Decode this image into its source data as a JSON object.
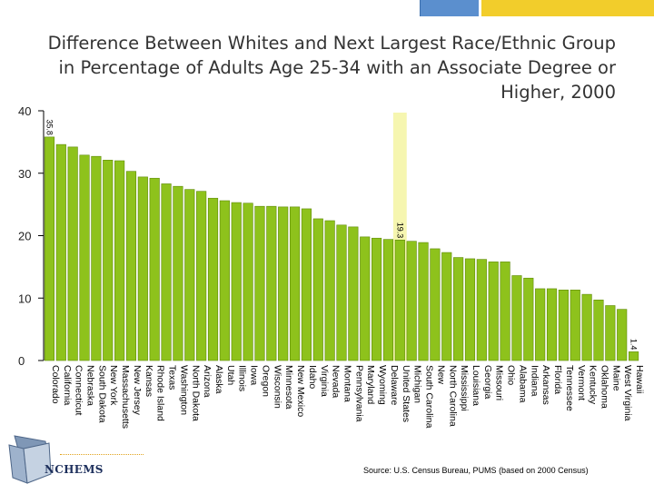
{
  "title": "Difference Between Whites and Next Largest Race/Ethnic Group in Percentage of Adults Age 25-34 with an Associate Degree or Higher, 2000",
  "source": "Source:  U.S. Census Bureau, PUMS (based on 2000 Census)",
  "logo_text": "NCHEMS",
  "colors": {
    "bar": "#8ec21c",
    "bar_stroke": "#5e8a08",
    "highlight": "#f6f6b0",
    "axis": "#000000",
    "accent_blue": "#5b8fce",
    "accent_yellow": "#f2cd2b"
  },
  "chart_data": {
    "type": "bar",
    "ylim": [
      0,
      40
    ],
    "yticks": [
      0,
      10,
      20,
      30,
      40
    ],
    "highlight_category": "United States",
    "categories": [
      "Colorado",
      "California",
      "Connecticut",
      "Nebraska",
      "South Dakota",
      "New York",
      "Massachusetts",
      "New Jersey",
      "Kansas",
      "Rhode Island",
      "Texas",
      "Washington",
      "North Dakota",
      "Arizona",
      "Alaska",
      "Utah",
      "Illinois",
      "Iowa",
      "Oregon",
      "Wisconsin",
      "Minnesota",
      "New Mexico",
      "Idaho",
      "Virginia",
      "Nevada",
      "Montana",
      "Pennsylvania",
      "Maryland",
      "Wyoming",
      "Delaware",
      "United States",
      "Michigan",
      "South Carolina",
      "New",
      "North Carolina",
      "Mississippi",
      "Louisiana",
      "Georgia",
      "Missouri",
      "Ohio",
      "Alabama",
      "Indiana",
      "Arkansas",
      "Florida",
      "Tennessee",
      "Vermont",
      "Kentucky",
      "Oklahoma",
      "Maine",
      "West Virginia",
      "Hawaii"
    ],
    "values": [
      35.8,
      34.6,
      34.2,
      32.9,
      32.7,
      32.1,
      32.0,
      30.3,
      29.4,
      29.2,
      28.3,
      27.9,
      27.4,
      27.1,
      26.0,
      25.6,
      25.3,
      25.2,
      24.7,
      24.7,
      24.6,
      24.6,
      24.3,
      22.7,
      22.4,
      21.7,
      21.4,
      19.8,
      19.6,
      19.4,
      19.3,
      19.1,
      18.9,
      17.9,
      17.3,
      16.5,
      16.3,
      16.2,
      15.8,
      15.8,
      13.6,
      13.2,
      11.5,
      11.5,
      11.3,
      11.3,
      10.6,
      9.7,
      8.8,
      8.2,
      1.4
    ],
    "data_labels": [
      {
        "category": "Colorado",
        "text": "35.8"
      },
      {
        "category": "United States",
        "text": "19.3"
      },
      {
        "category": "Hawaii",
        "text": "1.4"
      }
    ]
  }
}
